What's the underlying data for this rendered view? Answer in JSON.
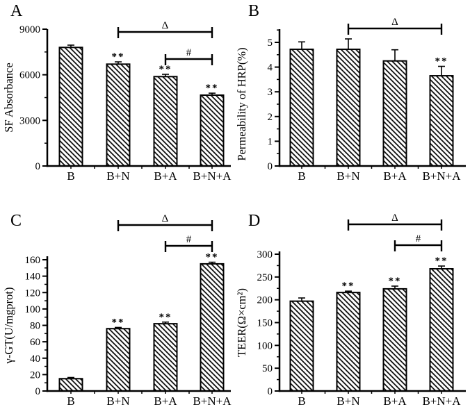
{
  "figure": {
    "background_color": "#ffffff",
    "ink_color": "#000000",
    "bar_style": "white bars with black diagonal backslash hatching",
    "error_bars": "upper only, with cap"
  },
  "chart_data": [
    {
      "panel_label": "A",
      "type": "bar",
      "title": "",
      "xlabel": "",
      "ylabel": "SF Absorbance",
      "categories": [
        "B",
        "B+N",
        "B+A",
        "B+N+A"
      ],
      "values": [
        7800,
        6700,
        5880,
        4660
      ],
      "errors_plus": [
        150,
        150,
        150,
        130
      ],
      "significance": [
        "",
        "**",
        "**",
        "**"
      ],
      "brackets": [
        {
          "from": 1,
          "to": 3,
          "from_category": "B+N",
          "to_category": "B+N+A",
          "label": "Δ"
        },
        {
          "from": 2,
          "to": 3,
          "from_category": "B+A",
          "to_category": "B+N+A",
          "label": "#"
        }
      ],
      "ylim": [
        0,
        9000
      ],
      "yticks": [
        0,
        3000,
        6000,
        9000
      ],
      "yminor_step": 1500,
      "grid": false,
      "legend": null
    },
    {
      "panel_label": "B",
      "type": "bar",
      "title": "",
      "xlabel": "",
      "ylabel": "Permeability of HRP(%)",
      "categories": [
        "B",
        "B+N",
        "B+A",
        "B+N+A"
      ],
      "values": [
        4.72,
        4.72,
        4.25,
        3.65
      ],
      "errors_plus": [
        0.3,
        0.42,
        0.45,
        0.38
      ],
      "significance": [
        "",
        "",
        "",
        "**"
      ],
      "brackets": [
        {
          "from": 1,
          "to": 3,
          "from_category": "B+N",
          "to_category": "B+N+A",
          "label": "Δ"
        }
      ],
      "ylim": [
        0,
        5
      ],
      "yticks": [
        0,
        1,
        2,
        3,
        4,
        5
      ],
      "yminor_step": 0.5,
      "grid": false,
      "legend": null
    },
    {
      "panel_label": "C",
      "type": "bar",
      "title": "",
      "xlabel": "",
      "ylabel": "γ-GT(U/mgprot)",
      "categories": [
        "B",
        "B+N",
        "B+A",
        "B+N+A"
      ],
      "values": [
        15,
        76,
        82,
        155
      ],
      "errors_plus": [
        1.5,
        1.5,
        2,
        2
      ],
      "significance": [
        "",
        "**",
        "**",
        "**"
      ],
      "brackets": [
        {
          "from": 1,
          "to": 3,
          "from_category": "B+N",
          "to_category": "B+N+A",
          "label": "Δ"
        },
        {
          "from": 2,
          "to": 3,
          "from_category": "B+A",
          "to_category": "B+N+A",
          "label": "#"
        }
      ],
      "ylim": [
        0,
        160
      ],
      "yticks": [
        0,
        20,
        40,
        60,
        80,
        100,
        120,
        140,
        160
      ],
      "yminor_step": 10,
      "grid": false,
      "legend": null
    },
    {
      "panel_label": "D",
      "type": "bar",
      "title": "",
      "xlabel": "",
      "ylabel": "TEER(Ω×cm²)",
      "categories": [
        "B",
        "B+N",
        "B+A",
        "B+N+A"
      ],
      "values": [
        197,
        216,
        224,
        268
      ],
      "errors_plus": [
        7,
        3,
        6,
        6
      ],
      "significance": [
        "",
        "**",
        "**",
        "**"
      ],
      "brackets": [
        {
          "from": 1,
          "to": 3,
          "from_category": "B+N",
          "to_category": "B+N+A",
          "label": "Δ"
        },
        {
          "from": 2,
          "to": 3,
          "from_category": "B+A",
          "to_category": "B+N+A",
          "label": "#"
        }
      ],
      "ylim": [
        0,
        300
      ],
      "yticks": [
        0,
        50,
        100,
        150,
        200,
        250,
        300
      ],
      "yminor_step": 25,
      "grid": false,
      "legend": null
    }
  ]
}
